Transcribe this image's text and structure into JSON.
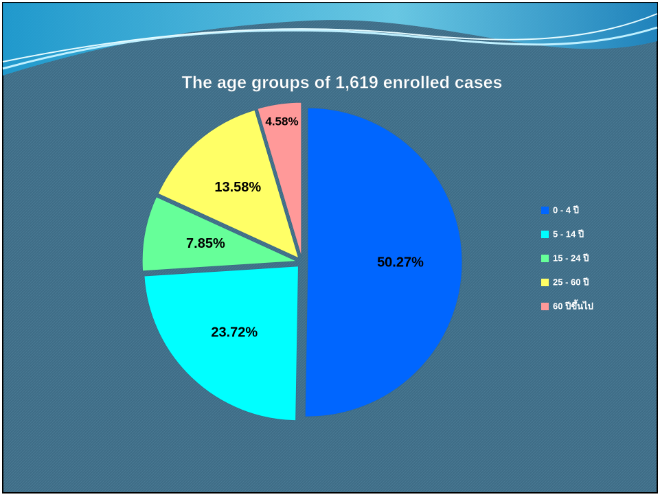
{
  "chart_data": {
    "type": "pie",
    "title": "The age groups of 1,619 enrolled cases",
    "categories": [
      "0 - 4 ปี",
      "5 - 14 ปี",
      "15 - 24 ปี",
      "25 - 60 ปี",
      "60 ปีขึ้นไป"
    ],
    "values": [
      50.27,
      23.72,
      7.85,
      13.58,
      4.58
    ],
    "value_labels": [
      "50.27%",
      "23.72%",
      "7.85%",
      "13.58%",
      "4.58%"
    ],
    "colors": [
      "#0066ff",
      "#00ffff",
      "#66ff99",
      "#ffff66",
      "#ff9999"
    ],
    "legend": "right"
  }
}
